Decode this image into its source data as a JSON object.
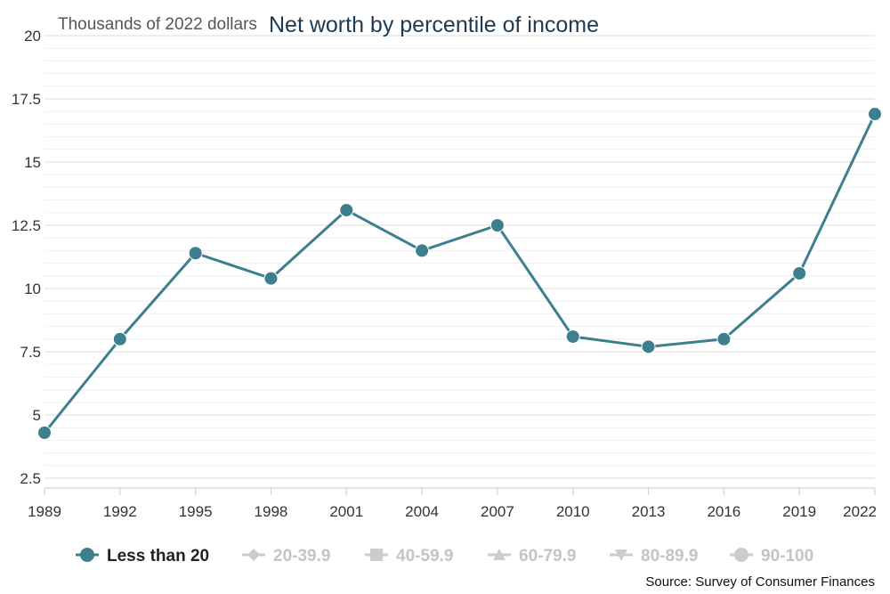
{
  "chart_data": {
    "type": "line",
    "title": "Net worth by percentile of income",
    "ylabel": "Thousands of 2022 dollars",
    "xlabel": "",
    "x": [
      "1989",
      "1992",
      "1995",
      "1998",
      "2001",
      "2004",
      "2007",
      "2010",
      "2013",
      "2016",
      "2019",
      "2022"
    ],
    "ylim": [
      2,
      20
    ],
    "yticks": [
      "2.5",
      "5",
      "7.5",
      "10",
      "12.5",
      "15",
      "17.5",
      "20"
    ],
    "minor_grid_step": 0.5,
    "grid": true,
    "legend_position": "bottom",
    "series": [
      {
        "name": "Less than 20",
        "active": true,
        "marker": "circle",
        "color": "#3d7f8c",
        "values": [
          4.3,
          8.0,
          11.4,
          10.4,
          13.1,
          11.5,
          12.5,
          8.1,
          7.7,
          8.0,
          10.6,
          16.9
        ]
      },
      {
        "name": "20-39.9",
        "active": false,
        "marker": "diamond",
        "color": "#cccccc"
      },
      {
        "name": "40-59.9",
        "active": false,
        "marker": "square",
        "color": "#cccccc"
      },
      {
        "name": "60-79.9",
        "active": false,
        "marker": "triangle",
        "color": "#cccccc"
      },
      {
        "name": "80-89.9",
        "active": false,
        "marker": "triangle-down",
        "color": "#cccccc"
      },
      {
        "name": "90-100",
        "active": false,
        "marker": "circle",
        "color": "#cccccc"
      }
    ],
    "source": "Source: Survey of Consumer Finances"
  }
}
